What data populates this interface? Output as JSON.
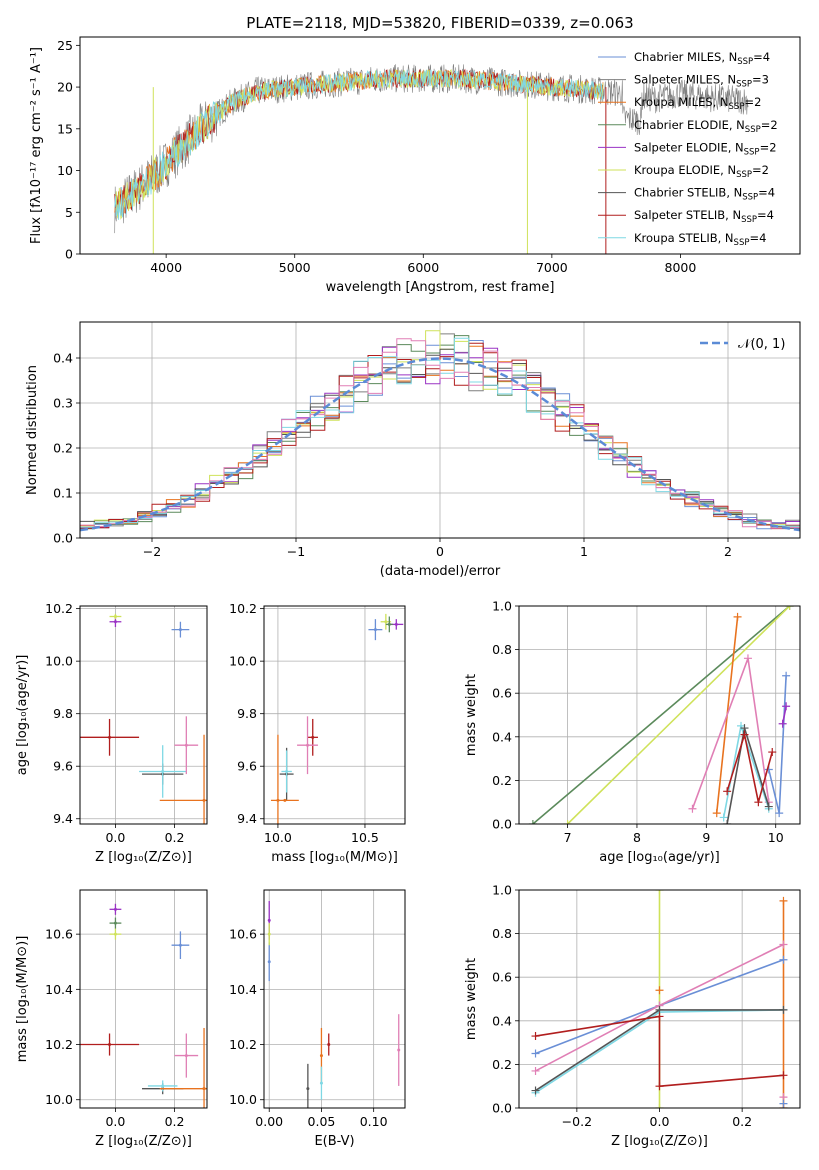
{
  "title": "PLATE=2118, MJD=53820, FIBERID=0339, z=0.063",
  "colors": {
    "chabrier_miles": "#6a8fd6",
    "salpeter_miles": "#7f7f7f",
    "kroupa_miles": "#e8731f",
    "chabrier_elodie": "#5b8a5b",
    "salpeter_elodie": "#9a33c4",
    "kroupa_elodie": "#cfe25a",
    "chabrier_stelib": "#555555",
    "salpeter_stelib": "#b11e1e",
    "kroupa_stelib": "#7fd8e4",
    "pink": "#e07fb5",
    "gaussian": "#5b8bd6"
  },
  "chart_data": [
    {
      "id": "spectrum",
      "type": "line",
      "title": "PLATE=2118, MJD=53820, FIBERID=0339, z=0.063",
      "xlabel": "wavelength [Angstrom, rest frame]",
      "ylabel": "Flux [fλ10⁻¹⁷ erg cm⁻² s⁻¹ A⁻¹]",
      "xlim": [
        3330,
        8930
      ],
      "ylim": [
        0,
        26
      ],
      "xticks": [
        "4000",
        "5000",
        "6000",
        "7000",
        "8000"
      ],
      "yticks": [
        "0",
        "5",
        "10",
        "15",
        "20",
        "25"
      ],
      "legend_position": "top-right",
      "legend": [
        "Chabrier MILES, N_SSP=4",
        "Salpeter MILES, N_SSP=3",
        "Kroupa MILES, N_SSP=2",
        "Chabrier ELODIE, N_SSP=2",
        "Salpeter ELODIE, N_SSP=2",
        "Kroupa ELODIE, N_SSP=2",
        "Chabrier STELIB, N_SSP=4",
        "Salpeter STELIB, N_SSP=4",
        "Kroupa STELIB, N_SSP=4"
      ],
      "continuum": [
        [
          3600,
          5.5
        ],
        [
          3800,
          8
        ],
        [
          3950,
          10
        ],
        [
          4100,
          12.5
        ],
        [
          4300,
          15.5
        ],
        [
          4500,
          18
        ],
        [
          4700,
          19.5
        ],
        [
          5000,
          20
        ],
        [
          5200,
          20.3
        ],
        [
          5400,
          20.6
        ],
        [
          5700,
          21
        ],
        [
          6000,
          21
        ],
        [
          6300,
          21
        ],
        [
          6600,
          20.6
        ],
        [
          6900,
          20.2
        ],
        [
          7200,
          19.8
        ],
        [
          7400,
          19.5
        ]
      ],
      "data_extension": [
        [
          7400,
          19.5
        ],
        [
          7600,
          19.2
        ],
        [
          7800,
          18.6
        ],
        [
          8000,
          19.2
        ],
        [
          8200,
          18.8
        ],
        [
          8400,
          18.5
        ],
        [
          8530,
          18.4
        ]
      ],
      "dropouts": [
        {
          "x": 6810,
          "color": "kroupa_elodie"
        },
        {
          "x": 7420,
          "color": "salpeter_stelib"
        },
        {
          "x": 3900,
          "color": "kroupa_elodie"
        }
      ]
    },
    {
      "id": "residual-histogram",
      "type": "line",
      "xlabel": "(data-model)/error",
      "ylabel": "Normed distribution",
      "xlim": [
        -2.5,
        2.5
      ],
      "ylim": [
        0,
        0.48
      ],
      "xticks": [
        "−2",
        "−1",
        "0",
        "1",
        "2"
      ],
      "yticks": [
        "0.0",
        "0.1",
        "0.2",
        "0.3",
        "0.4"
      ],
      "legend_position": "top-right",
      "gaussian_label": "𝒩(0, 1)",
      "bin_width": 0.1,
      "series_colors": [
        "chabrier_miles",
        "salpeter_miles",
        "kroupa_miles",
        "chabrier_elodie",
        "salpeter_elodie",
        "kroupa_elodie",
        "chabrier_stelib",
        "salpeter_stelib",
        "kroupa_stelib",
        "pink"
      ]
    },
    {
      "id": "age-vs-Z",
      "type": "scatter",
      "xlabel": "Z [log₁₀(Z/Z⊙)]",
      "ylabel": "age  [log₁₀(age/yr)]",
      "xlim": [
        -0.12,
        0.31
      ],
      "ylim": [
        9.38,
        10.21
      ],
      "xticks": [
        0.0,
        0.2
      ],
      "yticks": [
        9.4,
        9.6,
        9.8,
        10.0,
        10.2
      ],
      "points": [
        {
          "x": 0.0,
          "y": 10.15,
          "xerr": 0.02,
          "yerr": 0.02,
          "color": "salpeter_elodie"
        },
        {
          "x": 0.0,
          "y": 10.17,
          "xerr": 0.02,
          "yerr": 0.01,
          "color": "kroupa_elodie"
        },
        {
          "x": 0.22,
          "y": 10.12,
          "xerr": 0.03,
          "yerr": 0.03,
          "color": "chabrier_miles"
        },
        {
          "x": -0.02,
          "y": 9.71,
          "xerr": 0.1,
          "yerr": 0.07,
          "color": "salpeter_stelib"
        },
        {
          "x": 0.16,
          "y": 9.57,
          "xerr": 0.07,
          "yerr": 0.04,
          "color": "chabrier_stelib"
        },
        {
          "x": 0.16,
          "y": 9.58,
          "xerr": 0.08,
          "yerr": 0.1,
          "color": "kroupa_stelib"
        },
        {
          "x": 0.24,
          "y": 9.68,
          "xerr": 0.04,
          "yerr": 0.11,
          "color": "pink"
        },
        {
          "x": 0.3,
          "y": 9.47,
          "xerr": 0.15,
          "yerr": 0.25,
          "color": "kroupa_miles"
        }
      ]
    },
    {
      "id": "age-vs-mass",
      "type": "scatter",
      "xlabel": "mass [log₁₀(M/M⊙)]",
      "xlim": [
        9.92,
        10.73
      ],
      "ylim": [
        9.38,
        10.21
      ],
      "xticks": [
        10.0,
        10.5
      ],
      "yticks": [
        9.4,
        9.6,
        9.8,
        10.0,
        10.2
      ],
      "points": [
        {
          "x": 10.68,
          "y": 10.14,
          "xerr": 0.04,
          "yerr": 0.02,
          "color": "salpeter_elodie"
        },
        {
          "x": 10.62,
          "y": 10.15,
          "xerr": 0.03,
          "yerr": 0.03,
          "color": "kroupa_elodie"
        },
        {
          "x": 10.64,
          "y": 10.14,
          "xerr": 0.02,
          "yerr": 0.03,
          "color": "chabrier_elodie"
        },
        {
          "x": 10.56,
          "y": 10.12,
          "xerr": 0.04,
          "yerr": 0.04,
          "color": "chabrier_miles"
        },
        {
          "x": 10.2,
          "y": 9.71,
          "xerr": 0.03,
          "yerr": 0.07,
          "color": "salpeter_stelib"
        },
        {
          "x": 10.05,
          "y": 9.57,
          "xerr": 0.04,
          "yerr": 0.1,
          "color": "chabrier_stelib"
        },
        {
          "x": 10.05,
          "y": 9.58,
          "xerr": 0.03,
          "yerr": 0.08,
          "color": "kroupa_stelib"
        },
        {
          "x": 10.17,
          "y": 9.68,
          "xerr": 0.06,
          "yerr": 0.11,
          "color": "pink"
        },
        {
          "x": 10.0,
          "y": 9.47,
          "xerr": 0.0,
          "yerr": 0.25,
          "color": "kroupa_miles"
        },
        {
          "x": 10.04,
          "y": 9.47,
          "xerr": 0.08,
          "yerr": 0.0,
          "color": "kroupa_miles"
        }
      ]
    },
    {
      "id": "massweight-vs-age",
      "type": "line",
      "xlabel": "age  [log₁₀(age/yr)]",
      "ylabel": "mass weight",
      "xlim": [
        6.3,
        10.35
      ],
      "ylim": [
        0,
        1
      ],
      "xticks": [
        7,
        8,
        9,
        10
      ],
      "yticks": [
        0.0,
        0.2,
        0.4,
        0.6,
        0.8,
        1.0
      ],
      "series": [
        {
          "color": "chabrier_elodie",
          "points": [
            [
              6.5,
              0.0
            ],
            [
              10.2,
              1.0
            ]
          ]
        },
        {
          "color": "kroupa_elodie",
          "points": [
            [
              7.0,
              0.0
            ],
            [
              10.2,
              1.0
            ]
          ]
        },
        {
          "color": "kroupa_miles",
          "points": [
            [
              9.15,
              0.05
            ],
            [
              9.45,
              0.95
            ]
          ]
        },
        {
          "color": "pink",
          "points": [
            [
              8.8,
              0.07
            ],
            [
              9.6,
              0.76
            ],
            [
              9.9,
              0.1
            ]
          ]
        },
        {
          "color": "chabrier_miles",
          "points": [
            [
              9.9,
              0.25
            ],
            [
              10.05,
              0.05
            ],
            [
              10.15,
              0.68
            ]
          ]
        },
        {
          "color": "kroupa_stelib",
          "points": [
            [
              9.25,
              0.03
            ],
            [
              9.5,
              0.45
            ],
            [
              9.9,
              0.07
            ]
          ]
        },
        {
          "color": "chabrier_stelib",
          "points": [
            [
              9.3,
              0.0
            ],
            [
              9.55,
              0.44
            ],
            [
              9.9,
              0.08
            ]
          ]
        },
        {
          "color": "salpeter_stelib",
          "points": [
            [
              9.3,
              0.15
            ],
            [
              9.55,
              0.41
            ],
            [
              9.75,
              0.1
            ],
            [
              9.95,
              0.33
            ]
          ]
        },
        {
          "color": "salpeter_elodie",
          "points": [
            [
              10.1,
              0.46
            ],
            [
              10.15,
              0.54
            ]
          ]
        }
      ]
    },
    {
      "id": "mass-vs-Z",
      "type": "scatter",
      "xlabel": "Z [log₁₀(Z/Z⊙)]",
      "ylabel": "mass [log₁₀(M/M⊙)]",
      "xlim": [
        -0.12,
        0.31
      ],
      "ylim": [
        9.97,
        10.76
      ],
      "xticks": [
        0.0,
        0.2
      ],
      "yticks": [
        10.0,
        10.2,
        10.4,
        10.6
      ],
      "points": [
        {
          "x": 0.0,
          "y": 10.69,
          "xerr": 0.02,
          "yerr": 0.02,
          "color": "salpeter_elodie"
        },
        {
          "x": 0.0,
          "y": 10.64,
          "xerr": 0.02,
          "yerr": 0.02,
          "color": "chabrier_elodie"
        },
        {
          "x": 0.0,
          "y": 10.6,
          "xerr": 0.02,
          "yerr": 0.02,
          "color": "kroupa_elodie"
        },
        {
          "x": 0.22,
          "y": 10.56,
          "xerr": 0.03,
          "yerr": 0.05,
          "color": "chabrier_miles"
        },
        {
          "x": -0.02,
          "y": 10.2,
          "xerr": 0.1,
          "yerr": 0.04,
          "color": "salpeter_stelib"
        },
        {
          "x": 0.16,
          "y": 10.04,
          "xerr": 0.07,
          "yerr": 0.02,
          "color": "chabrier_stelib"
        },
        {
          "x": 0.16,
          "y": 10.05,
          "xerr": 0.05,
          "yerr": 0.02,
          "color": "kroupa_stelib"
        },
        {
          "x": 0.24,
          "y": 10.16,
          "xerr": 0.04,
          "yerr": 0.08,
          "color": "pink"
        },
        {
          "x": 0.3,
          "y": 10.04,
          "xerr": 0.15,
          "yerr": 0.0,
          "color": "kroupa_miles"
        },
        {
          "x": 0.3,
          "y": 10.04,
          "xerr": 0.0,
          "yerr": 0.22,
          "color": "kroupa_miles"
        }
      ]
    },
    {
      "id": "mass-vs-ebv",
      "type": "scatter",
      "xlabel": "E(B-V)",
      "xlim": [
        -0.005,
        0.13
      ],
      "ylim": [
        9.97,
        10.76
      ],
      "xticks": [
        "0.00",
        "0.05",
        "0.10"
      ],
      "yticks": [
        10.0,
        10.2,
        10.4,
        10.6
      ],
      "points": [
        {
          "x": 0.0,
          "y": 10.65,
          "xerr": 0.0,
          "yerr": 0.07,
          "color": "salpeter_elodie"
        },
        {
          "x": 0.0,
          "y": 10.5,
          "xerr": 0.0,
          "yerr": 0.07,
          "color": "chabrier_miles"
        },
        {
          "x": 0.0,
          "y": 10.6,
          "xerr": 0.0,
          "yerr": 0.04,
          "color": "kroupa_elodie"
        },
        {
          "x": 0.037,
          "y": 10.04,
          "xerr": 0.0,
          "yerr": 0.09,
          "color": "chabrier_stelib"
        },
        {
          "x": 0.05,
          "y": 10.16,
          "xerr": 0.0,
          "yerr": 0.1,
          "color": "kroupa_miles"
        },
        {
          "x": 0.05,
          "y": 10.06,
          "xerr": 0.0,
          "yerr": 0.06,
          "color": "kroupa_stelib"
        },
        {
          "x": 0.057,
          "y": 10.2,
          "xerr": 0.0,
          "yerr": 0.04,
          "color": "salpeter_stelib"
        },
        {
          "x": 0.124,
          "y": 10.18,
          "xerr": 0.0,
          "yerr": 0.13,
          "color": "pink"
        }
      ]
    },
    {
      "id": "massweight-vs-Z",
      "type": "line",
      "xlabel": "Z [log₁₀(Z/Z⊙)]",
      "ylabel": "mass weight",
      "xlim": [
        -0.34,
        0.34
      ],
      "ylim": [
        0,
        1
      ],
      "xticks": [
        "−0.2",
        "0.0",
        "0.2"
      ],
      "yticks": [
        0.0,
        0.2,
        0.4,
        0.6,
        0.8,
        1.0
      ],
      "series": [
        {
          "color": "kroupa_elodie",
          "points": [
            [
              0.0,
              0.0
            ],
            [
              0.0,
              1.0
            ]
          ]
        },
        {
          "color": "kroupa_miles",
          "points": [
            [
              0.3,
              0.0
            ],
            [
              0.3,
              0.95
            ]
          ]
        },
        {
          "color": "chabrier_miles",
          "points": [
            [
              -0.3,
              0.25
            ],
            [
              0.0,
              0.47
            ],
            [
              0.3,
              0.68
            ]
          ]
        },
        {
          "color": "pink",
          "points": [
            [
              -0.3,
              0.17
            ],
            [
              0.0,
              0.47
            ],
            [
              0.3,
              0.75
            ]
          ]
        },
        {
          "color": "kroupa_stelib",
          "points": [
            [
              -0.3,
              0.07
            ],
            [
              0.0,
              0.44
            ],
            [
              0.3,
              0.45
            ]
          ]
        },
        {
          "color": "chabrier_stelib",
          "points": [
            [
              -0.3,
              0.08
            ],
            [
              0.0,
              0.45
            ],
            [
              0.3,
              0.45
            ]
          ]
        },
        {
          "color": "salpeter_stelib",
          "points": [
            [
              -0.3,
              0.33
            ],
            [
              0.0,
              0.42
            ],
            [
              0.0,
              0.1
            ],
            [
              0.3,
              0.15
            ]
          ]
        }
      ],
      "markers": [
        {
          "x": 0.0,
          "y": 0.54,
          "color": "kroupa_miles"
        },
        {
          "x": 0.3,
          "y": 0.05,
          "color": "pink"
        },
        {
          "x": 0.3,
          "y": 0.02,
          "color": "chabrier_miles"
        }
      ]
    }
  ]
}
